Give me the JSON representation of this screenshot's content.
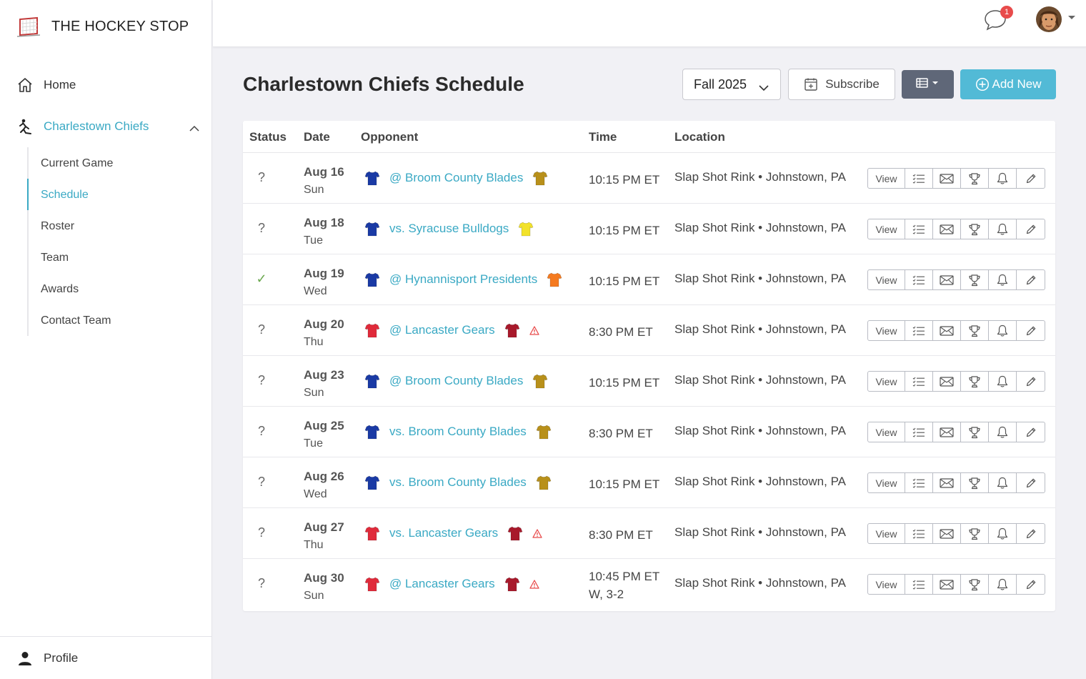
{
  "app": {
    "brand": "THE HOCKEY STOP"
  },
  "sidebar": {
    "home": "Home",
    "team": "Charlestown Chiefs",
    "subnav": [
      "Current Game",
      "Schedule",
      "Roster",
      "Team",
      "Awards",
      "Contact Team"
    ],
    "active": "Schedule",
    "profile": "Profile"
  },
  "topbar": {
    "notification_count": "1"
  },
  "header": {
    "title": "Charlestown Chiefs Schedule",
    "season": "Fall 2025",
    "subscribe": "Subscribe",
    "add_new": "Add New"
  },
  "table": {
    "headers": {
      "status": "Status",
      "date": "Date",
      "opponent": "Opponent",
      "time": "Time",
      "location": "Location"
    },
    "action_view": "View",
    "rows": [
      {
        "status": "?",
        "date": "Aug 16",
        "day": "Sun",
        "home_jersey": "#1a3aa5",
        "opponent": "@ Broom County Blades",
        "opp_jersey": "#b8901a",
        "warning": false,
        "time": "10:15 PM ET",
        "result": "",
        "location": "Slap Shot Rink • Johnstown, PA"
      },
      {
        "status": "?",
        "date": "Aug 18",
        "day": "Tue",
        "home_jersey": "#1a3aa5",
        "opponent": "vs. Syracuse Bulldogs",
        "opp_jersey": "#f2e22a",
        "warning": false,
        "time": "10:15 PM ET",
        "result": "",
        "location": "Slap Shot Rink • Johnstown, PA"
      },
      {
        "status": "✓",
        "date": "Aug 19",
        "day": "Wed",
        "home_jersey": "#1a3aa5",
        "opponent": "@ Hynannisport Presidents",
        "opp_jersey": "#f57a1f",
        "warning": false,
        "time": "10:15 PM ET",
        "result": "",
        "location": "Slap Shot Rink • Johnstown, PA"
      },
      {
        "status": "?",
        "date": "Aug 20",
        "day": "Thu",
        "home_jersey": "#e02a3a",
        "opponent": "@ Lancaster Gears",
        "opp_jersey": "#a8192b",
        "warning": true,
        "time": "8:30 PM ET",
        "result": "",
        "location": "Slap Shot Rink • Johnstown, PA"
      },
      {
        "status": "?",
        "date": "Aug 23",
        "day": "Sun",
        "home_jersey": "#1a3aa5",
        "opponent": "@ Broom County Blades",
        "opp_jersey": "#b8901a",
        "warning": false,
        "time": "10:15 PM ET",
        "result": "",
        "location": "Slap Shot Rink • Johnstown, PA"
      },
      {
        "status": "?",
        "date": "Aug 25",
        "day": "Tue",
        "home_jersey": "#1a3aa5",
        "opponent": "vs. Broom County Blades",
        "opp_jersey": "#b8901a",
        "warning": false,
        "time": "8:30 PM ET",
        "result": "",
        "location": "Slap Shot Rink • Johnstown, PA"
      },
      {
        "status": "?",
        "date": "Aug 26",
        "day": "Wed",
        "home_jersey": "#1a3aa5",
        "opponent": "vs. Broom County Blades",
        "opp_jersey": "#b8901a",
        "warning": false,
        "time": "10:15 PM ET",
        "result": "",
        "location": "Slap Shot Rink • Johnstown, PA"
      },
      {
        "status": "?",
        "date": "Aug 27",
        "day": "Thu",
        "home_jersey": "#e02a3a",
        "opponent": "vs. Lancaster Gears",
        "opp_jersey": "#a8192b",
        "warning": true,
        "time": "8:30 PM ET",
        "result": "",
        "location": "Slap Shot Rink • Johnstown, PA"
      },
      {
        "status": "?",
        "date": "Aug 30",
        "day": "Sun",
        "home_jersey": "#e02a3a",
        "opponent": "@ Lancaster Gears",
        "opp_jersey": "#a8192b",
        "warning": true,
        "time": "10:45 PM ET",
        "result": "W, 3-2",
        "location": "Slap Shot Rink • Johnstown, PA"
      }
    ]
  },
  "colors": {
    "accent": "#3aa9c4",
    "add_button": "#52bad6",
    "view_toggle": "#5f6778",
    "ok": "#6ba84f",
    "warn": "#e84b4b"
  },
  "icons": [
    "goal-net-logo-icon",
    "home-icon",
    "hockey-player-icon",
    "chevron-up-icon",
    "person-icon",
    "chat-icon",
    "chevron-down-icon",
    "calendar-plus-icon",
    "table-view-icon",
    "plus-circle-icon",
    "jersey-icon",
    "warning-icon",
    "list-icon",
    "envelope-icon",
    "trophy-icon",
    "bell-icon",
    "pencil-icon"
  ]
}
